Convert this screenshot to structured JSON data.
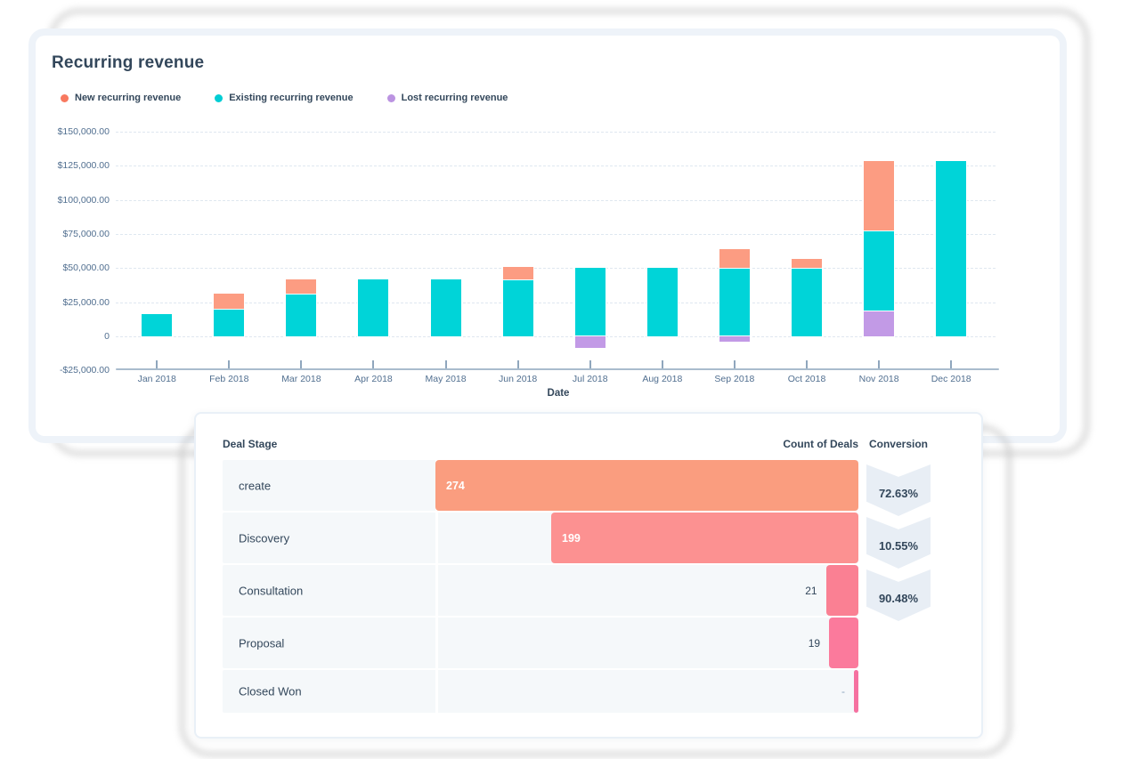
{
  "chart_data": {
    "type": "bar",
    "stacked": true,
    "title": "Recurring revenue",
    "xlabel": "Date",
    "ylabel": "",
    "ylim": [
      -25000,
      150000
    ],
    "grid": "dashed-horizontal",
    "legend_position": "top",
    "yticks": [
      150000,
      125000,
      100000,
      75000,
      50000,
      25000,
      0,
      -25000
    ],
    "ytick_labels": [
      "$150,000.00",
      "$125,000.00",
      "$100,000.00",
      "$75,000.00",
      "$50,000.00",
      "$25,000.00",
      "0",
      "-$25,000.00"
    ],
    "categories": [
      "Jan 2018",
      "Feb 2018",
      "Mar 2018",
      "Apr 2018",
      "May 2018",
      "Jun 2018",
      "Jul 2018",
      "Aug 2018",
      "Sep 2018",
      "Oct 2018",
      "Nov 2018",
      "Dec 2018"
    ],
    "series": [
      {
        "name": "New recurring revenue",
        "color": "#f8795f",
        "bar_color": "#fc9c82",
        "values": [
          0,
          11500,
          10500,
          0,
          0,
          9000,
          0,
          0,
          14000,
          6500,
          51100,
          0
        ]
      },
      {
        "name": "Existing recurring revenue",
        "color": "#00cdd4",
        "bar_color": "#00d4d8",
        "values": [
          16500,
          20000,
          31500,
          42000,
          42000,
          42000,
          50000,
          50000,
          50000,
          50500,
          58800,
          128600
        ]
      },
      {
        "name": "Lost recurring revenue",
        "color": "#bb93e1",
        "bar_color": "#c29ae6",
        "values": [
          0,
          0,
          0,
          0,
          0,
          0,
          -8500,
          0,
          -4000,
          0,
          18700,
          0
        ]
      }
    ]
  },
  "chart": {
    "title": "Recurring revenue",
    "xaxis_title": "Date"
  },
  "funnel": {
    "columns": {
      "stage": "Deal Stage",
      "count": "Count of Deals",
      "conversion": "Conversion"
    },
    "max_count": 274,
    "rows": [
      {
        "stage": "create",
        "count_value": 274,
        "count_label": "274",
        "count_position": "inside",
        "conversion": "72.63%",
        "bar_color": "#fa9d7f"
      },
      {
        "stage": "Discovery",
        "count_value": 199,
        "count_label": "199",
        "count_position": "inside",
        "conversion": "10.55%",
        "bar_color": "#fc9191"
      },
      {
        "stage": "Consultation",
        "count_value": 21,
        "count_label": "21",
        "count_position": "outside",
        "conversion": "90.48%",
        "bar_color": "#fa8093"
      },
      {
        "stage": "Proposal",
        "count_value": 19,
        "count_label": "19",
        "count_position": "outside",
        "conversion": "",
        "bar_color": "#fb7a9c"
      },
      {
        "stage": "Closed Won",
        "count_value": null,
        "count_label": "-",
        "count_position": "outside",
        "conversion": "",
        "bar_color": "#f571a0"
      }
    ]
  }
}
